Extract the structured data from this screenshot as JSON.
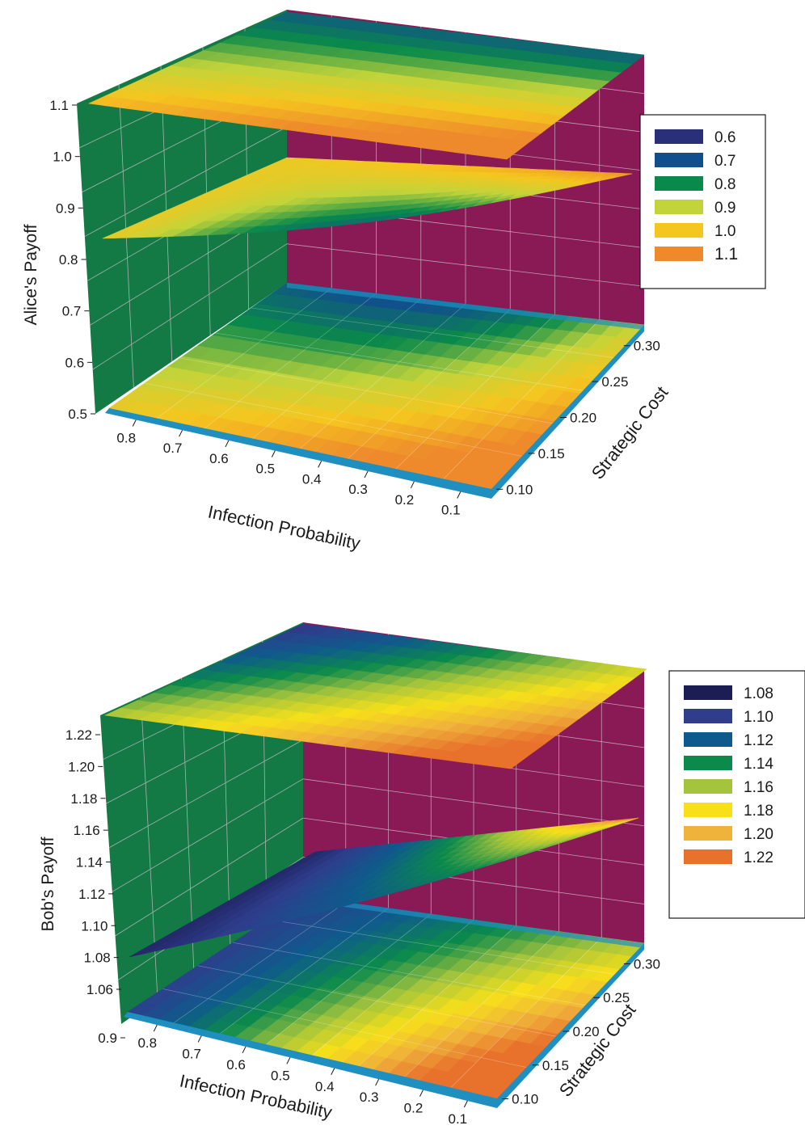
{
  "chart_data": [
    {
      "type": "surface3d",
      "title": "",
      "xlabel": "Infection Probability",
      "ylabel": "Strategic Cost",
      "zlabel": "Alice's Payoff",
      "x_ticks": [
        "0.8",
        "0.7",
        "0.6",
        "0.5",
        "0.4",
        "0.3",
        "0.2",
        "0.1"
      ],
      "y_ticks": [
        "0.10",
        "0.15",
        "0.20",
        "0.25",
        "0.30"
      ],
      "z_ticks": [
        "0.5",
        "0.6",
        "0.7",
        "0.8",
        "0.9",
        "1.0",
        "1.1"
      ],
      "xlim": [
        0.1,
        0.8
      ],
      "ylim": [
        0.1,
        0.3
      ],
      "zlim": [
        0.5,
        1.1
      ],
      "legend": {
        "placement": "right",
        "entries": [
          {
            "label": "0.6",
            "color": "#2a2f7a"
          },
          {
            "label": "0.7",
            "color": "#114e8e"
          },
          {
            "label": "0.8",
            "color": "#0a8a4a"
          },
          {
            "label": "0.9",
            "color": "#c2d43a"
          },
          {
            "label": "1.0",
            "color": "#f5c61f"
          },
          {
            "label": "1.1",
            "color": "#ee8a2c"
          }
        ]
      },
      "walls": {
        "left": "#137a46",
        "back": "#8a1a55",
        "floor_edge": "#1f8fc0"
      },
      "surface_range": [
        0.82,
        0.98
      ],
      "colormap_range": [
        0.6,
        1.1
      ],
      "grid": true
    },
    {
      "type": "surface3d",
      "title": "",
      "xlabel": "Infection Probability",
      "ylabel": "Strategic Cost",
      "zlabel": "Bob's Payoff",
      "x_ticks": [
        "0.8",
        "0.7",
        "0.6",
        "0.5",
        "0.4",
        "0.3",
        "0.2",
        "0.1"
      ],
      "y_ticks": [
        "0.10",
        "0.15",
        "0.20",
        "0.25",
        "0.30"
      ],
      "z_ticks": [
        "0.9",
        "1.06",
        "1.08",
        "1.10",
        "1.12",
        "1.14",
        "1.16",
        "1.18",
        "1.20",
        "1.22"
      ],
      "xlim": [
        0.1,
        0.9
      ],
      "ylim": [
        0.1,
        0.3
      ],
      "zlim": [
        0.9,
        1.23
      ],
      "legend": {
        "placement": "right",
        "entries": [
          {
            "label": "1.08",
            "color": "#1c1d55"
          },
          {
            "label": "1.10",
            "color": "#2f3d8c"
          },
          {
            "label": "1.12",
            "color": "#0f5a8c"
          },
          {
            "label": "1.14",
            "color": "#0b8a4c"
          },
          {
            "label": "1.16",
            "color": "#a4c43c"
          },
          {
            "label": "1.18",
            "color": "#f7e01a"
          },
          {
            "label": "1.20",
            "color": "#efb23a"
          },
          {
            "label": "1.22",
            "color": "#e8722c"
          }
        ]
      },
      "walls": {
        "left": "#137a46",
        "back": "#8a1a55",
        "floor_edge": "#1f8fc0"
      },
      "surface_range": [
        1.08,
        1.22
      ],
      "colormap_range": [
        1.08,
        1.22
      ],
      "grid": true
    }
  ]
}
